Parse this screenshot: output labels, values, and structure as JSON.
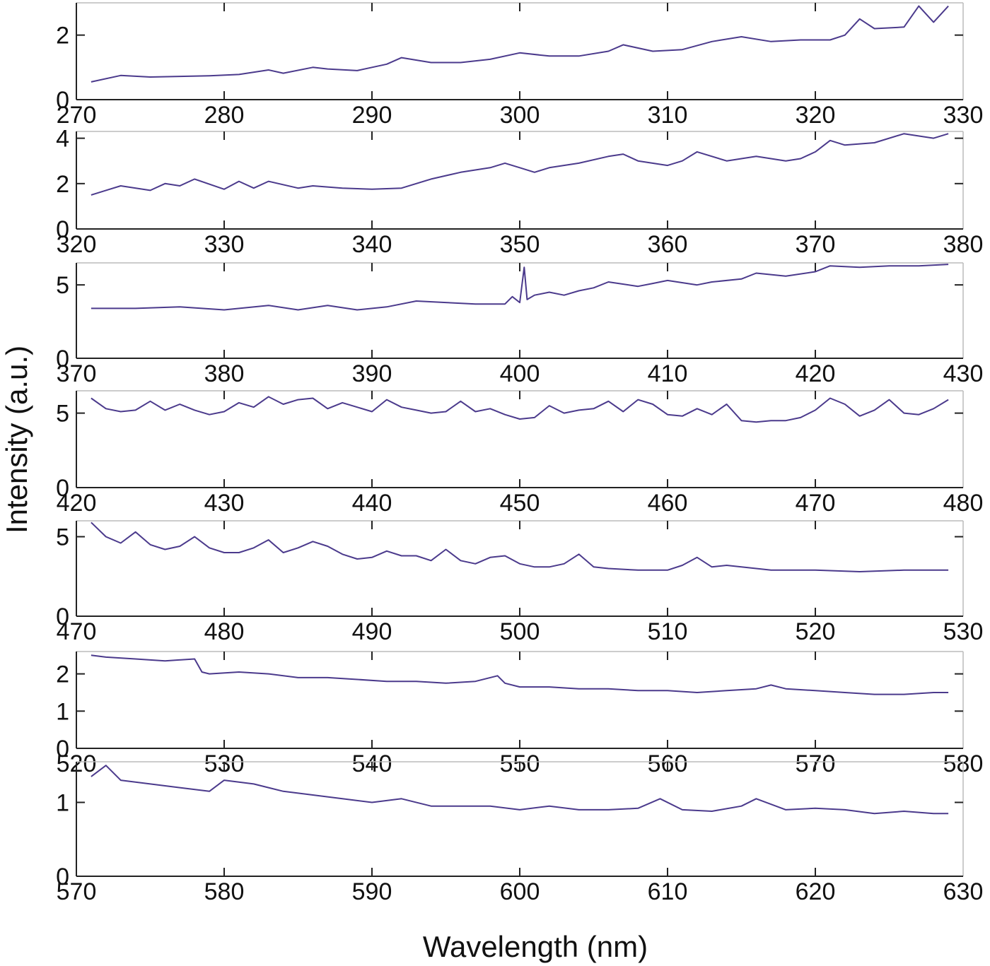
{
  "chart_data": {
    "type": "line",
    "xlabel": "Wavelength (nm)",
    "ylabel": "Intensity (a.u.)",
    "line_color": "#4b3a8c",
    "grid": false,
    "legend": "none",
    "panels": [
      {
        "xlim": [
          270,
          330
        ],
        "xticks": [
          "270",
          "280",
          "290",
          "300",
          "310",
          "320",
          "330"
        ],
        "ylim": [
          0,
          3
        ],
        "yticks": [
          {
            "v": 0,
            "t": "0"
          },
          {
            "v": 2,
            "t": "2"
          }
        ],
        "series": [
          {
            "x": [
              271,
              273,
              275,
              277,
              279,
              281,
              283,
              284,
              286,
              287,
              289,
              291,
              292,
              294,
              296,
              298,
              300,
              302,
              304,
              306,
              307,
              309,
              311,
              313,
              315,
              317,
              319,
              321,
              322,
              323,
              324,
              326,
              327,
              328,
              329
            ],
            "y": [
              0.55,
              0.75,
              0.7,
              0.72,
              0.74,
              0.78,
              0.92,
              0.82,
              1.0,
              0.95,
              0.9,
              1.1,
              1.3,
              1.15,
              1.15,
              1.25,
              1.45,
              1.35,
              1.35,
              1.5,
              1.7,
              1.5,
              1.55,
              1.8,
              1.95,
              1.8,
              1.85,
              1.85,
              2.0,
              2.5,
              2.2,
              2.25,
              2.9,
              2.4,
              2.9
            ]
          }
        ]
      },
      {
        "xlim": [
          320,
          380
        ],
        "xticks": [
          "320",
          "330",
          "340",
          "350",
          "360",
          "370",
          "380"
        ],
        "ylim": [
          0,
          4.3
        ],
        "yticks": [
          {
            "v": 0,
            "t": "0"
          },
          {
            "v": 2,
            "t": "2"
          },
          {
            "v": 4,
            "t": "4"
          }
        ],
        "series": [
          {
            "x": [
              321,
              322,
              323,
              325,
              326,
              327,
              328,
              330,
              331,
              332,
              333,
              335,
              336,
              338,
              340,
              342,
              344,
              346,
              348,
              349,
              350,
              351,
              352,
              354,
              356,
              357,
              358,
              360,
              361,
              362,
              364,
              366,
              368,
              369,
              370,
              371,
              372,
              374,
              376,
              378,
              379
            ],
            "y": [
              1.5,
              1.7,
              1.9,
              1.7,
              2.0,
              1.9,
              2.2,
              1.75,
              2.1,
              1.8,
              2.1,
              1.8,
              1.9,
              1.8,
              1.75,
              1.8,
              2.2,
              2.5,
              2.7,
              2.9,
              2.7,
              2.5,
              2.7,
              2.9,
              3.2,
              3.3,
              3.0,
              2.8,
              3.0,
              3.4,
              3.0,
              3.2,
              3.0,
              3.1,
              3.4,
              3.9,
              3.7,
              3.8,
              4.2,
              4.0,
              4.2
            ]
          }
        ]
      },
      {
        "xlim": [
          370,
          430
        ],
        "xticks": [
          "370",
          "380",
          "390",
          "400",
          "410",
          "420",
          "430"
        ],
        "ylim": [
          0,
          6.5
        ],
        "yticks": [
          {
            "v": 0,
            "t": "0"
          },
          {
            "v": 5,
            "t": "5"
          }
        ],
        "series": [
          {
            "x": [
              371,
              374,
              377,
              380,
              383,
              385,
              387,
              389,
              391,
              393,
              395,
              397,
              398,
              399,
              399.5,
              400,
              400.3,
              400.5,
              401,
              402,
              403,
              404,
              405,
              406,
              408,
              409,
              410,
              412,
              413,
              415,
              416,
              418,
              420,
              421,
              423,
              425,
              427,
              429
            ],
            "y": [
              3.4,
              3.4,
              3.5,
              3.3,
              3.6,
              3.3,
              3.6,
              3.3,
              3.5,
              3.9,
              3.8,
              3.7,
              3.7,
              3.7,
              4.2,
              3.8,
              6.2,
              4.0,
              4.3,
              4.5,
              4.3,
              4.6,
              4.8,
              5.2,
              4.9,
              5.1,
              5.3,
              5.0,
              5.2,
              5.4,
              5.8,
              5.6,
              5.9,
              6.3,
              6.2,
              6.3,
              6.3,
              6.4
            ]
          }
        ]
      },
      {
        "xlim": [
          420,
          480
        ],
        "xticks": [
          "420",
          "430",
          "440",
          "450",
          "460",
          "470",
          "480"
        ],
        "ylim": [
          0,
          6.5
        ],
        "yticks": [
          {
            "v": 0,
            "t": "0"
          },
          {
            "v": 5,
            "t": "5"
          }
        ],
        "series": [
          {
            "x": [
              421,
              422,
              423,
              424,
              425,
              426,
              427,
              428,
              429,
              430,
              431,
              432,
              433,
              434,
              435,
              436,
              437,
              438,
              439,
              440,
              441,
              442,
              443,
              444,
              445,
              446,
              447,
              448,
              449,
              450,
              451,
              452,
              453,
              454,
              455,
              456,
              457,
              458,
              459,
              460,
              461,
              462,
              463,
              464,
              465,
              466,
              467,
              468,
              469,
              470,
              471,
              472,
              473,
              474,
              475,
              476,
              477,
              478,
              479
            ],
            "y": [
              6.0,
              5.3,
              5.1,
              5.2,
              5.8,
              5.2,
              5.6,
              5.2,
              4.9,
              5.1,
              5.7,
              5.4,
              6.1,
              5.6,
              5.9,
              6.0,
              5.3,
              5.7,
              5.4,
              5.1,
              5.9,
              5.4,
              5.2,
              5.0,
              5.1,
              5.8,
              5.1,
              5.3,
              4.9,
              4.6,
              4.7,
              5.5,
              5.0,
              5.2,
              5.3,
              5.8,
              5.1,
              5.9,
              5.6,
              4.9,
              4.8,
              5.3,
              4.9,
              5.6,
              4.5,
              4.4,
              4.5,
              4.5,
              4.7,
              5.2,
              6.0,
              5.6,
              4.8,
              5.2,
              5.9,
              5.0,
              4.9,
              5.3,
              5.9
            ]
          }
        ]
      },
      {
        "xlim": [
          470,
          530
        ],
        "xticks": [
          "470",
          "480",
          "490",
          "500",
          "510",
          "520",
          "530"
        ],
        "ylim": [
          0,
          6
        ],
        "yticks": [
          {
            "v": 0,
            "t": "0"
          },
          {
            "v": 5,
            "t": "5"
          }
        ],
        "series": [
          {
            "x": [
              471,
              472,
              473,
              474,
              475,
              476,
              477,
              478,
              479,
              480,
              481,
              482,
              483,
              484,
              485,
              486,
              487,
              488,
              489,
              490,
              491,
              492,
              493,
              494,
              495,
              496,
              497,
              498,
              499,
              500,
              501,
              502,
              503,
              504,
              505,
              506,
              508,
              510,
              511,
              512,
              513,
              514,
              515,
              517,
              520,
              523,
              526,
              529
            ],
            "y": [
              5.9,
              5.0,
              4.6,
              5.3,
              4.5,
              4.2,
              4.4,
              5.0,
              4.3,
              4.0,
              4.0,
              4.3,
              4.8,
              4.0,
              4.3,
              4.7,
              4.4,
              3.9,
              3.6,
              3.7,
              4.1,
              3.8,
              3.8,
              3.5,
              4.2,
              3.5,
              3.3,
              3.7,
              3.8,
              3.3,
              3.1,
              3.1,
              3.3,
              3.9,
              3.1,
              3.0,
              2.9,
              2.9,
              3.2,
              3.7,
              3.1,
              3.2,
              3.1,
              2.9,
              2.9,
              2.8,
              2.9,
              2.9
            ]
          }
        ]
      },
      {
        "xlim": [
          520,
          580
        ],
        "xticks": [
          "520",
          "530",
          "540",
          "550",
          "560",
          "570",
          "580"
        ],
        "ylim": [
          0,
          2.6
        ],
        "yticks": [
          {
            "v": 0,
            "t": "0"
          },
          {
            "v": 1,
            "t": "1"
          },
          {
            "v": 2,
            "t": "2"
          }
        ],
        "series": [
          {
            "x": [
              521,
              522,
              524,
              526,
              528,
              528.5,
              529,
              531,
              533,
              535,
              537,
              539,
              541,
              543,
              545,
              547,
              548.5,
              549,
              550,
              552,
              554,
              556,
              558,
              560,
              562,
              564,
              566,
              567,
              568,
              570,
              572,
              574,
              576,
              578,
              579
            ],
            "y": [
              2.5,
              2.45,
              2.4,
              2.35,
              2.4,
              2.05,
              2.0,
              2.05,
              2.0,
              1.9,
              1.9,
              1.85,
              1.8,
              1.8,
              1.75,
              1.8,
              1.95,
              1.75,
              1.65,
              1.65,
              1.6,
              1.6,
              1.55,
              1.55,
              1.5,
              1.55,
              1.6,
              1.7,
              1.6,
              1.55,
              1.5,
              1.45,
              1.45,
              1.5,
              1.5
            ]
          }
        ]
      },
      {
        "xlim": [
          570,
          630
        ],
        "xticks": [
          "570",
          "580",
          "590",
          "600",
          "610",
          "620",
          "630"
        ],
        "ylim": [
          0,
          1.55
        ],
        "yticks": [
          {
            "v": 0,
            "t": "0"
          },
          {
            "v": 1,
            "t": "1"
          }
        ],
        "series": [
          {
            "x": [
              571,
              572,
              573,
              575,
              577,
              579,
              580,
              582,
              584,
              586,
              588,
              590,
              592,
              594,
              596,
              598,
              600,
              602,
              604,
              606,
              608,
              609.5,
              611,
              613,
              615,
              616,
              618,
              620,
              622,
              624,
              626,
              628,
              629
            ],
            "y": [
              1.35,
              1.5,
              1.3,
              1.25,
              1.2,
              1.15,
              1.3,
              1.25,
              1.15,
              1.1,
              1.05,
              1.0,
              1.05,
              0.95,
              0.95,
              0.95,
              0.9,
              0.95,
              0.9,
              0.9,
              0.92,
              1.05,
              0.9,
              0.88,
              0.95,
              1.05,
              0.9,
              0.92,
              0.9,
              0.85,
              0.88,
              0.85,
              0.85
            ]
          }
        ]
      }
    ]
  }
}
